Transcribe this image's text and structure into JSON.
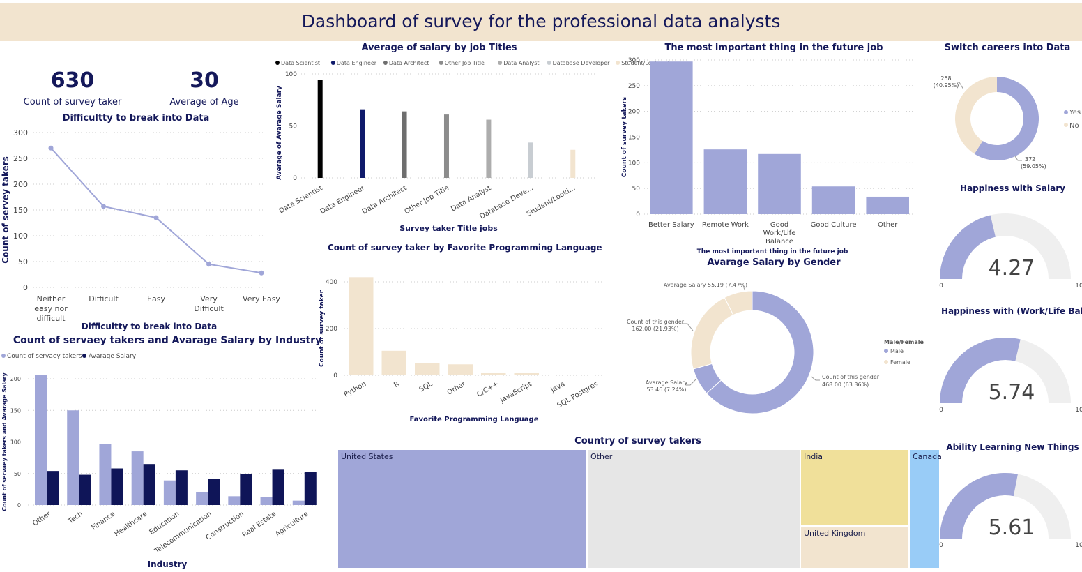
{
  "header": {
    "title": "Dashboard of survey for the professional data analysts"
  },
  "kpis": {
    "count_value": "630",
    "count_label": "Count of survey taker",
    "age_value": "30",
    "age_label": "Average of Age"
  },
  "colors": {
    "lavender": "#a0a6d8",
    "navy": "#0f1558",
    "beige": "#f2e4cf",
    "grey": "#e6e6e6",
    "yellow": "#f0e09a",
    "lightblue": "#99ccf7"
  },
  "difficulty": {
    "title": "Difficultty to break into Data",
    "xlabel": "Difficultty to break into Data",
    "ylabel": "Count of servey takers"
  },
  "salary_jobs": {
    "title": "Average of salary by job Titles",
    "xlabel": "Survey taker Title jobs",
    "ylabel": "Average of Avarage Salary"
  },
  "future_job": {
    "title": "The most important thing in the future job",
    "xlabel": "The most important thing in the future job",
    "ylabel": "Count of survey takers"
  },
  "switch": {
    "title": "Switch careers into Data",
    "no_label_1": "258",
    "no_label_2": "(40.95%)",
    "yes_label_1": "372",
    "yes_label_2": "(59.05%)",
    "legend_yes": "Yes",
    "legend_no": "No"
  },
  "industry": {
    "title": "Count of servaey takers and Avarage Salary by Industry",
    "legend_count": "Count of servaey takers",
    "legend_salary": "Avarage Salary",
    "xlabel": "Industry",
    "ylabel": "Count of servaey takers and Avarage Salary"
  },
  "language": {
    "title": "Count of survey taker by Favorite Programming Language",
    "xlabel": "Favorite Programming Language",
    "ylabel": "Count of survey taker"
  },
  "gender": {
    "title": "Avarage Salary by Gender",
    "legend_title": "Male/Female",
    "legend_male": "Male",
    "legend_female": "Female",
    "label_avg_female": "Avarage Salary 55.19 (7.47%)",
    "label_count_female_1": "Count of this gender",
    "label_count_female_2": "162.00 (21.93%)",
    "label_avg_male_1": "Avarage Salary",
    "label_avg_male_2": "53.46 (7.24%)",
    "label_count_male_1": "Count of this gender",
    "label_count_male_2": "468.00 (63.36%)"
  },
  "country": {
    "title": "Country of survey takers",
    "labels": [
      "United States",
      "Other",
      "India",
      "United Kingdom",
      "Canada"
    ]
  },
  "gauges": [
    {
      "title": "Happiness with Salary",
      "value": "4.27",
      "min": "0",
      "max": "10",
      "fraction": 0.427
    },
    {
      "title": "Happiness with (Work/Life Balance)",
      "value": "5.74",
      "min": "0",
      "max": "10",
      "fraction": 0.574
    },
    {
      "title": "Ability Learning New Things",
      "value": "5.61",
      "min": "0",
      "max": "10",
      "fraction": 0.561
    }
  ],
  "chart_data": [
    {
      "type": "line",
      "title": "Difficultty to break into Data",
      "xlabel": "Difficultty to break into Data",
      "ylabel": "Count of servey takers",
      "categories": [
        "Neither easy nor difficult",
        "Difficult",
        "Easy",
        "Very Difficult",
        "Very Easy"
      ],
      "values": [
        270,
        157,
        135,
        45,
        28
      ],
      "ylim": [
        0,
        300
      ],
      "yticks": [
        0,
        50,
        100,
        150,
        200,
        250,
        300
      ]
    },
    {
      "type": "bar",
      "title": "Average of salary by job Titles",
      "xlabel": "Survey taker Title jobs",
      "ylabel": "Average of Avarage Salary",
      "categories": [
        "Data Scientist",
        "Data Engineer",
        "Data Architect",
        "Other Job Title",
        "Data Analyst",
        "Database Deve...",
        "Student/Looki..."
      ],
      "legend": [
        "Data Scientist",
        "Data Engineer",
        "Data Architect",
        "Other Job Title",
        "Data Analyst",
        "Database Developer",
        "Student/Looking/..."
      ],
      "values": [
        94,
        66,
        64,
        61,
        56,
        34,
        27
      ],
      "colors": [
        "#000000",
        "#0f1a6b",
        "#6e6e6e",
        "#8c8c8c",
        "#adadad",
        "#c8cdd2",
        "#f2e4cf"
      ],
      "ylim": [
        0,
        100
      ],
      "yticks": [
        0,
        50,
        100
      ]
    },
    {
      "type": "bar",
      "title": "The most important thing in the future job",
      "xlabel": "The most important thing in the future job",
      "ylabel": "Count of survey takers",
      "categories": [
        "Better Salary",
        "Remote Work",
        "Good Work/Life Balance",
        "Good Culture",
        "Other"
      ],
      "values": [
        297,
        126,
        117,
        54,
        34
      ],
      "ylim": [
        0,
        300
      ],
      "yticks": [
        0,
        50,
        100,
        150,
        200,
        250,
        300
      ]
    },
    {
      "type": "pie",
      "title": "Switch careers into Data",
      "categories": [
        "Yes",
        "No"
      ],
      "values": [
        372,
        258
      ]
    },
    {
      "type": "bar",
      "title": "Count of servaey takers and Avarage Salary by Industry",
      "xlabel": "Industry",
      "ylabel": "Count of servaey takers and Avarage Salary",
      "categories": [
        "Other",
        "Tech",
        "Finance",
        "Healthcare",
        "Education",
        "Telecommunication",
        "Construction",
        "Real Estate",
        "Agriculture"
      ],
      "series": [
        {
          "name": "Count of servaey takers",
          "values": [
            206,
            150,
            97,
            85,
            39,
            21,
            14,
            13,
            7
          ]
        },
        {
          "name": "Avarage Salary",
          "values": [
            54,
            48,
            58,
            65,
            55,
            41,
            49,
            56,
            53
          ]
        }
      ],
      "ylim": [
        0,
        200
      ],
      "yticks": [
        0,
        50,
        100,
        150,
        200
      ]
    },
    {
      "type": "bar",
      "title": "Count of survey taker by Favorite Programming Language",
      "xlabel": "Favorite Programming Language",
      "ylabel": "Count of survey taker",
      "categories": [
        "Python",
        "R",
        "SQL",
        "Other",
        "C/C++",
        "JavaScript",
        "Java",
        "SQL Postgres"
      ],
      "values": [
        420,
        105,
        51,
        47,
        9,
        9,
        3,
        3
      ],
      "ylim": [
        0,
        400
      ],
      "yticks": [
        0,
        200,
        400
      ]
    },
    {
      "type": "pie",
      "title": "Avarage Salary by Gender",
      "categories": [
        "Count of this gender (Male)",
        "Avarage Salary (Male)",
        "Count of this gender (Female)",
        "Avarage Salary (Female)"
      ],
      "values": [
        468.0,
        53.46,
        162.0,
        55.19
      ]
    },
    {
      "type": "heatmap",
      "title": "Country of survey takers",
      "categories": [
        "United States",
        "Other",
        "India",
        "United Kingdom",
        "Canada"
      ]
    }
  ]
}
